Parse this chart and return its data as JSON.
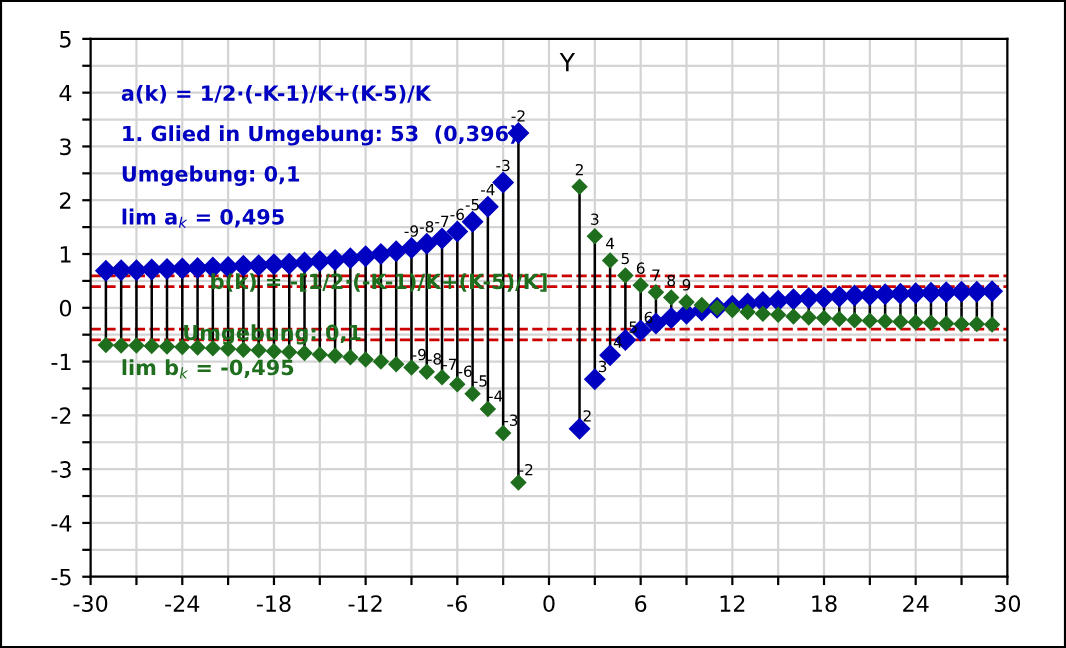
{
  "chart_data": {
    "type": "lollipop",
    "x": [
      -29,
      -28,
      -27,
      -26,
      -25,
      -24,
      -23,
      -22,
      -21,
      -20,
      -19,
      -18,
      -17,
      -16,
      -15,
      -14,
      -13,
      -12,
      -11,
      -10,
      -9,
      -8,
      -7,
      -6,
      -5,
      -4,
      -3,
      -2,
      2,
      3,
      4,
      5,
      6,
      7,
      8,
      9,
      10,
      11,
      12,
      13,
      14,
      15,
      16,
      17,
      18,
      19,
      20,
      21,
      22,
      23,
      24,
      25,
      26,
      27,
      28,
      29
    ],
    "series": [
      {
        "name": "a(k) = 1/2·(-K-1)/K+(K-5)/K",
        "color": "#0000c0",
        "values": [
          0.69,
          0.7,
          0.7,
          0.71,
          0.72,
          0.73,
          0.74,
          0.75,
          0.76,
          0.78,
          0.79,
          0.81,
          0.82,
          0.84,
          0.87,
          0.89,
          0.92,
          0.96,
          1.0,
          1.05,
          1.11,
          1.19,
          1.29,
          1.42,
          1.6,
          1.88,
          2.33,
          3.25,
          -2.25,
          -1.33,
          -0.88,
          -0.6,
          -0.42,
          -0.29,
          -0.19,
          -0.11,
          -0.05,
          0.0,
          0.04,
          0.08,
          0.11,
          0.13,
          0.16,
          0.18,
          0.19,
          0.21,
          0.23,
          0.24,
          0.25,
          0.26,
          0.27,
          0.28,
          0.29,
          0.3,
          0.3,
          0.31
        ]
      },
      {
        "name": "b(k) = -[1/2·(-K-1)/K+(K-5)/K]",
        "color": "#1e6e1e",
        "values": [
          -0.69,
          -0.7,
          -0.7,
          -0.71,
          -0.72,
          -0.73,
          -0.74,
          -0.75,
          -0.76,
          -0.78,
          -0.79,
          -0.81,
          -0.82,
          -0.84,
          -0.87,
          -0.89,
          -0.92,
          -0.96,
          -1.0,
          -1.05,
          -1.11,
          -1.19,
          -1.29,
          -1.42,
          -1.6,
          -1.88,
          -2.33,
          -3.25,
          2.25,
          1.33,
          0.88,
          0.6,
          0.42,
          0.29,
          0.19,
          0.11,
          0.05,
          0.0,
          -0.04,
          -0.08,
          -0.11,
          -0.13,
          -0.16,
          -0.18,
          -0.19,
          -0.21,
          -0.23,
          -0.24,
          -0.25,
          -0.26,
          -0.27,
          -0.28,
          -0.29,
          -0.3,
          -0.3,
          -0.31
        ]
      }
    ],
    "ylabel": "Y",
    "xlim": [
      -30,
      30
    ],
    "xticks": [
      -30,
      {
        "value": -27,
        "label": null
      },
      -24,
      {
        "value": -21,
        "label": null
      },
      -18,
      {
        "value": -15,
        "label": null
      },
      -12,
      {
        "value": -9,
        "label": null
      },
      -6,
      {
        "value": -3,
        "label": null
      },
      0,
      {
        "value": 3,
        "label": null
      },
      6,
      {
        "value": 9,
        "label": null
      },
      12,
      {
        "value": 15,
        "label": null
      },
      18,
      {
        "value": 21,
        "label": null
      },
      24,
      {
        "value": 27,
        "label": null
      },
      30
    ],
    "ylim": [
      -5,
      5
    ],
    "yticks": [
      -5,
      {
        "value": -4.5,
        "label": null
      },
      -4,
      {
        "value": -3.5,
        "label": null
      },
      -3,
      {
        "value": -2.5,
        "label": null
      },
      -2,
      {
        "value": -1.5,
        "label": null
      },
      -1,
      {
        "value": -0.5,
        "label": null
      },
      0,
      {
        "value": 0.5,
        "label": null
      },
      1,
      {
        "value": 1.5,
        "label": null
      },
      2,
      {
        "value": 2.5,
        "label": null
      },
      3,
      {
        "value": 3.5,
        "label": null
      },
      4,
      {
        "value": 4.5,
        "label": null
      },
      5
    ],
    "grid": true,
    "legend": false,
    "marker": "diamond",
    "ref_lines": [
      {
        "axis": "y",
        "value": 0.595,
        "label": null,
        "color": "#cc0000",
        "line_style": "dashed"
      },
      {
        "axis": "y",
        "value": 0.395,
        "label": null,
        "color": "#cc0000",
        "line_style": "dashed"
      },
      {
        "axis": "y",
        "value": -0.395,
        "label": null,
        "color": "#cc0000",
        "line_style": "dashed"
      },
      {
        "axis": "y",
        "value": -0.595,
        "label": null,
        "color": "#cc0000",
        "line_style": "dashed"
      }
    ],
    "annotations": [
      "1. Glied in Umgebung: 53  (0,396)",
      "Umgebung: 0,1",
      "lim a$_{k}$ = 0,495",
      "Umgebung: 0,1",
      "lim b$_{k}$ = -0,495",
      {
        "text": "-9",
        "x": -9,
        "y": 1.11
      },
      {
        "text": "-8",
        "x": -8,
        "y": 1.19
      },
      {
        "text": "-7",
        "x": -7,
        "y": 1.29
      },
      {
        "text": "-6",
        "x": -6,
        "y": 1.42
      },
      {
        "text": "-5",
        "x": -5,
        "y": 1.6
      },
      {
        "text": "-4",
        "x": -4,
        "y": 1.88
      },
      {
        "text": "-3",
        "x": -3,
        "y": 2.33
      },
      {
        "text": "-2",
        "x": -2,
        "y": 3.25
      },
      {
        "text": "2",
        "x": 2,
        "y": -2.25
      },
      {
        "text": "3",
        "x": 3,
        "y": -1.33
      },
      {
        "text": "4",
        "x": 4,
        "y": -0.88
      },
      {
        "text": "5",
        "x": 5,
        "y": -0.6
      },
      {
        "text": "6",
        "x": 6,
        "y": -0.42
      },
      {
        "text": "-9",
        "x": -9,
        "y": -1.11
      },
      {
        "text": "-8",
        "x": -8,
        "y": -1.19
      },
      {
        "text": "-7",
        "x": -7,
        "y": -1.29
      },
      {
        "text": "-6",
        "x": -6,
        "y": -1.42
      },
      {
        "text": "-5",
        "x": -5,
        "y": -1.6
      },
      {
        "text": "-4",
        "x": -4,
        "y": -1.88
      },
      {
        "text": "-3",
        "x": -3,
        "y": -2.33
      },
      {
        "text": "-2",
        "x": -2,
        "y": -3.25
      },
      {
        "text": "2",
        "x": 2,
        "y": 2.25
      },
      {
        "text": "3",
        "x": 3,
        "y": 1.33
      },
      {
        "text": "4",
        "x": 4,
        "y": 0.88
      },
      {
        "text": "5",
        "x": 5,
        "y": 0.6
      },
      {
        "text": "6",
        "x": 6,
        "y": 0.42
      },
      {
        "text": "7",
        "x": 7,
        "y": 0.29
      },
      {
        "text": "8",
        "x": 8,
        "y": 0.19
      },
      {
        "text": "9",
        "x": 9,
        "y": 0.11
      }
    ]
  }
}
